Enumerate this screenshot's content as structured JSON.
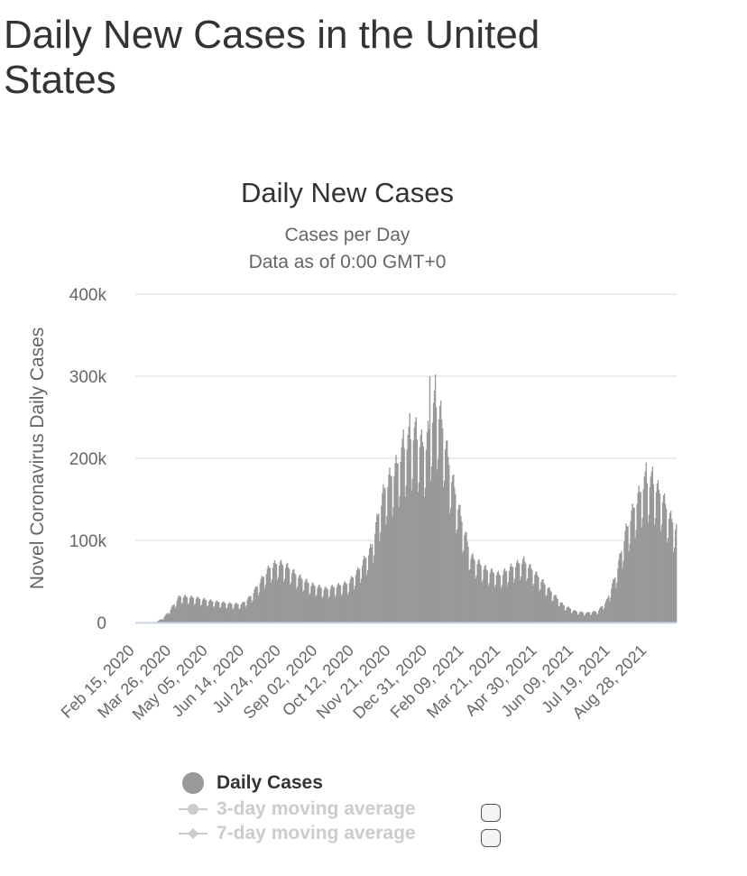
{
  "page": {
    "title": "Daily New Cases in the United States"
  },
  "chart_data": {
    "type": "bar",
    "title": "Daily New Cases",
    "subtitle": [
      "Cases per Day",
      "Data as of 0:00 GMT+0"
    ],
    "ylabel": "Novel Coronavirus Daily Cases",
    "xlabel": "",
    "ylim": [
      0,
      400000
    ],
    "y_ticks": [
      0,
      100000,
      200000,
      300000,
      400000
    ],
    "y_tick_labels": [
      "0",
      "100k",
      "200k",
      "300k",
      "400k"
    ],
    "x_tick_labels": [
      "Feb 15, 2020",
      "Mar 26, 2020",
      "May 05, 2020",
      "Jun 14, 2020",
      "Jul 24, 2020",
      "Sep 02, 2020",
      "Oct 12, 2020",
      "Nov 21, 2020",
      "Dec 31, 2020",
      "Feb 09, 2021",
      "Mar 21, 2021",
      "Apr 30, 2021",
      "Jun 09, 2021",
      "Jul 19, 2021",
      "Aug 28, 2021"
    ],
    "grid": true,
    "legend_position": "bottom",
    "bar_color": "#999999",
    "series": [
      {
        "name": "Daily Cases",
        "x_start": "2020-02-15",
        "x_end": "2021-09-29",
        "x_step_days": 1,
        "weekly_profile": [
          1.06,
          0.76,
          0.82,
          1.03,
          1.11,
          1.15,
          1.08
        ],
        "trend_anchors": [
          [
            "2020-02-15",
            0
          ],
          [
            "2020-03-08",
            600
          ],
          [
            "2020-03-16",
            5000
          ],
          [
            "2020-03-24",
            15000
          ],
          [
            "2020-04-03",
            30000
          ],
          [
            "2020-04-20",
            28000
          ],
          [
            "2020-05-10",
            24000
          ],
          [
            "2020-05-31",
            21000
          ],
          [
            "2020-06-10",
            21000
          ],
          [
            "2020-06-20",
            30000
          ],
          [
            "2020-07-01",
            48000
          ],
          [
            "2020-07-10",
            62000
          ],
          [
            "2020-07-19",
            68000
          ],
          [
            "2020-07-29",
            64000
          ],
          [
            "2020-08-10",
            53000
          ],
          [
            "2020-08-25",
            43000
          ],
          [
            "2020-09-10",
            38000
          ],
          [
            "2020-09-24",
            42000
          ],
          [
            "2020-10-05",
            45000
          ],
          [
            "2020-10-16",
            60000
          ],
          [
            "2020-10-30",
            85000
          ],
          [
            "2020-11-07",
            125000
          ],
          [
            "2020-11-14",
            155000
          ],
          [
            "2020-11-25",
            175000
          ],
          [
            "2020-12-05",
            200000
          ],
          [
            "2020-12-15",
            215000
          ],
          [
            "2020-12-28",
            200000
          ],
          [
            "2021-01-08",
            250000
          ],
          [
            "2021-01-14",
            235000
          ],
          [
            "2021-01-24",
            175000
          ],
          [
            "2021-02-05",
            120000
          ],
          [
            "2021-02-16",
            75000
          ],
          [
            "2021-03-05",
            60000
          ],
          [
            "2021-03-20",
            54000
          ],
          [
            "2021-04-05",
            65000
          ],
          [
            "2021-04-15",
            70000
          ],
          [
            "2021-04-30",
            53000
          ],
          [
            "2021-05-15",
            35000
          ],
          [
            "2021-05-28",
            20000
          ],
          [
            "2021-06-10",
            13000
          ],
          [
            "2021-06-22",
            11000
          ],
          [
            "2021-07-05",
            13000
          ],
          [
            "2021-07-15",
            25000
          ],
          [
            "2021-07-25",
            55000
          ],
          [
            "2021-08-05",
            105000
          ],
          [
            "2021-08-15",
            135000
          ],
          [
            "2021-08-25",
            160000
          ],
          [
            "2021-09-03",
            160000
          ],
          [
            "2021-09-13",
            145000
          ],
          [
            "2021-09-22",
            120000
          ],
          [
            "2021-09-29",
            108000
          ]
        ],
        "spikes": [
          [
            "2020-12-04",
            235000
          ],
          [
            "2020-12-11",
            255000
          ],
          [
            "2020-12-18",
            250000
          ],
          [
            "2021-01-02",
            300000
          ],
          [
            "2021-01-08",
            302000
          ],
          [
            "2021-08-27",
            195000
          ],
          [
            "2021-09-03",
            190000
          ]
        ]
      },
      {
        "name": "3-day moving average"
      },
      {
        "name": "7-day moving average"
      }
    ]
  },
  "colors": {
    "bars": "#999999",
    "grid": "#e6e6e6",
    "x_axis_line": "#ccd6eb",
    "text": "#333333",
    "muted_text": "#666666",
    "legend_inactive": "#cccccc"
  }
}
